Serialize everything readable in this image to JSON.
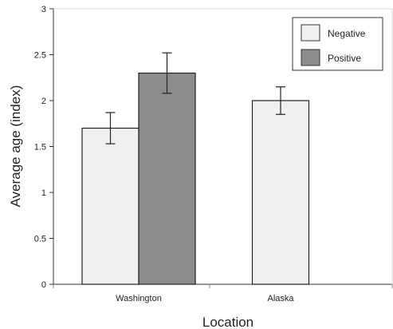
{
  "chart_data": {
    "type": "bar",
    "title": "",
    "xlabel": "Location",
    "ylabel": "Average age (index)",
    "categories": [
      "Washington",
      "Alaska"
    ],
    "ylim": [
      0,
      3
    ],
    "yticks": [
      0,
      0.5,
      1,
      1.5,
      2,
      2.5,
      3
    ],
    "ytick_labels": [
      "0",
      "0.5",
      "1",
      "1.5",
      "2",
      "2.5",
      "3"
    ],
    "series": [
      {
        "name": "Negative",
        "color": "#f0f0f0",
        "values": [
          1.7,
          2.0
        ],
        "error": [
          0.17,
          0.15
        ]
      },
      {
        "name": "Positive",
        "color": "#8c8c8c",
        "values": [
          2.3,
          null
        ],
        "error": [
          0.22,
          null
        ]
      }
    ],
    "legend_placement": "top-right",
    "grid": false,
    "error_bars": true
  }
}
